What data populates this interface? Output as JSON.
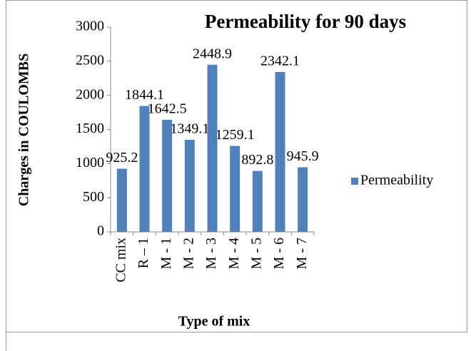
{
  "chart_data": {
    "type": "bar",
    "title": "Permeability for 90 days",
    "x_label": "Type of mix",
    "y_label": "Charges in COULOMBS",
    "categories": [
      "CC mix",
      "R – 1",
      "M - 1",
      "M - 2",
      "M - 3",
      "M - 4",
      "M - 5",
      "M - 6",
      "M - 7"
    ],
    "series": [
      {
        "name": "Permeability",
        "color": "#4f81bd",
        "values": [
          925.2,
          1844.1,
          1642.5,
          1349.1,
          2448.9,
          1259.1,
          892.8,
          2342.1,
          945.9
        ]
      }
    ],
    "ylim": [
      0,
      3000
    ],
    "yticks": [
      0,
      500,
      1000,
      1500,
      2000,
      2500,
      3000
    ],
    "grid": false,
    "legend": "right"
  }
}
